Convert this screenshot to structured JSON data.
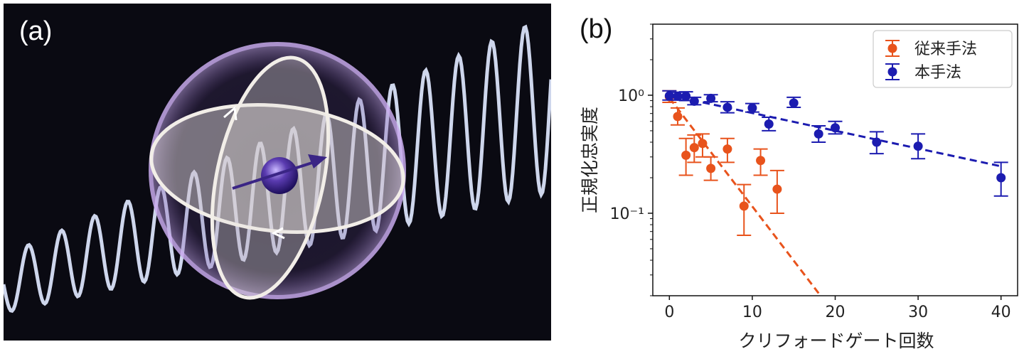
{
  "panel_a": {
    "label": "(a)",
    "icon": "qubit-bloch-sphere-illustration",
    "colors": {
      "background": "#0a0a12",
      "wave": "#dfe8ff",
      "sphere": "#b79cdc",
      "qubit": "#4a2f9a"
    }
  },
  "panel_b": {
    "label": "(b)",
    "chart_data": {
      "type": "scatter",
      "title": "",
      "xlabel": "クリフォードゲート回数",
      "ylabel": "正規化忠実度",
      "xlim": [
        -2,
        42
      ],
      "ylim": [
        0.02,
        4
      ],
      "yscale": "log",
      "xticks": [
        0,
        10,
        20,
        30,
        40
      ],
      "xtick_labels": [
        "0",
        "10",
        "20",
        "30",
        "40"
      ],
      "yticks": [
        1,
        0.1
      ],
      "ytick_labels": [
        "10⁰",
        "10⁻¹"
      ],
      "grid": false,
      "legend": "top-right",
      "series": [
        {
          "name": "従来手法",
          "color": "#e8531c",
          "x": [
            0,
            1,
            2,
            3,
            4,
            5,
            7,
            9,
            11,
            13
          ],
          "y": [
            0.97,
            0.66,
            0.31,
            0.36,
            0.39,
            0.24,
            0.35,
            0.115,
            0.28,
            0.16
          ],
          "err_low": [
            0.1,
            0.1,
            0.1,
            0.09,
            0.09,
            0.05,
            0.08,
            0.05,
            0.07,
            0.06
          ],
          "err_high": [
            0.12,
            0.12,
            0.12,
            0.1,
            0.08,
            0.06,
            0.08,
            0.06,
            0.07,
            0.07
          ],
          "fit": {
            "x": [
              0,
              18
            ],
            "y": [
              0.95,
              0.021
            ]
          }
        },
        {
          "name": "本手法",
          "color": "#1c1cb0",
          "x": [
            0,
            1,
            2,
            3,
            5,
            7,
            10,
            12,
            15,
            18,
            20,
            25,
            30,
            40
          ],
          "y": [
            0.99,
            0.98,
            0.98,
            0.89,
            0.94,
            0.79,
            0.78,
            0.57,
            0.86,
            0.47,
            0.53,
            0.4,
            0.37,
            0.2
          ],
          "err_low": [
            0.08,
            0.07,
            0.08,
            0.06,
            0.06,
            0.08,
            0.06,
            0.07,
            0.07,
            0.07,
            0.06,
            0.08,
            0.08,
            0.06
          ],
          "err_high": [
            0.1,
            0.08,
            0.09,
            0.07,
            0.07,
            0.09,
            0.07,
            0.08,
            0.1,
            0.08,
            0.07,
            0.09,
            0.1,
            0.07
          ],
          "fit": {
            "x": [
              0,
              40
            ],
            "y": [
              1.0,
              0.25
            ]
          }
        }
      ]
    }
  }
}
